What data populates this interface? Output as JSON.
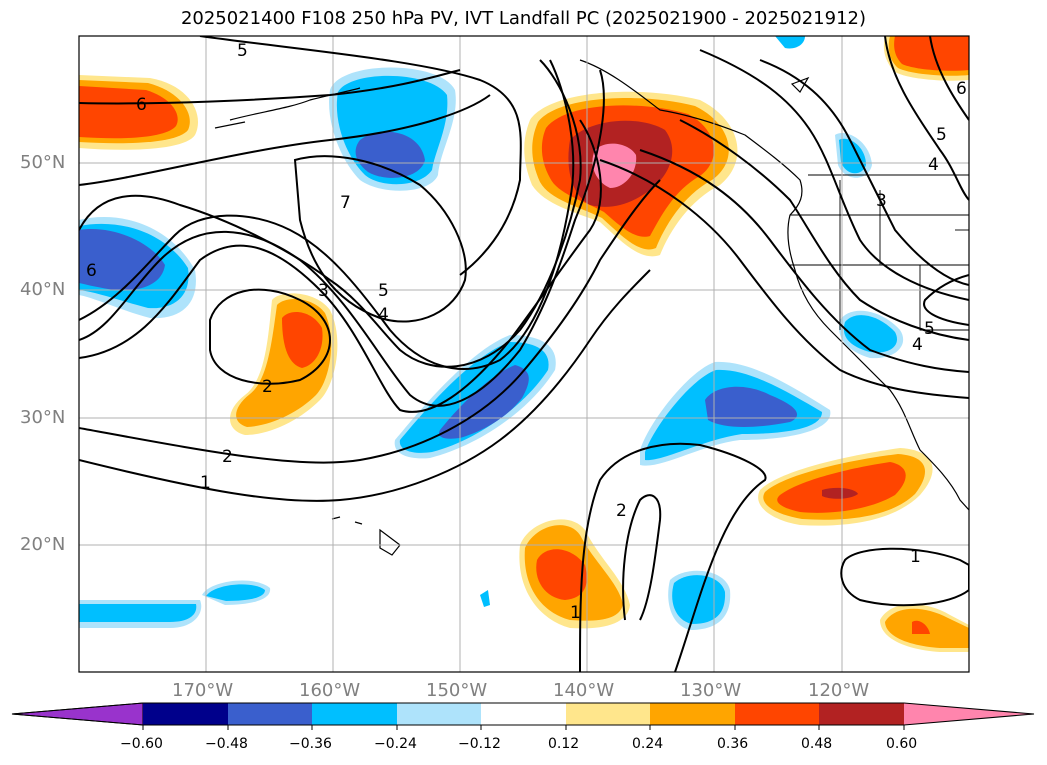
{
  "title": "2025021400 F108 250 hPa PV, IVT Landfall PC (2025021900 - 2025021912)",
  "lat_labels": [
    "50°N",
    "40°N",
    "30°N",
    "20°N"
  ],
  "lon_labels": [
    "170°W",
    "160°W",
    "150°W",
    "140°W",
    "130°W",
    "120°W"
  ],
  "colorbar": {
    "ticks": [
      "−0.60",
      "−0.48",
      "−0.36",
      "−0.24",
      "−0.12",
      "0.12",
      "0.24",
      "0.36",
      "0.48",
      "0.60"
    ],
    "colors": [
      "#9933cc",
      "#00008b",
      "#3a5fcd",
      "#00bfff",
      "#aee3fb",
      "#ffffff",
      "#ffe68c",
      "#ffa500",
      "#ff4500",
      "#b22222",
      "#ff85ad"
    ]
  },
  "contour_labels": [
    "5",
    "6",
    "7",
    "3",
    "5",
    "4",
    "6",
    "2",
    "2",
    "1",
    "2",
    "1",
    "1",
    "4",
    "3",
    "5",
    "4",
    "5",
    "6"
  ],
  "colors": {
    "grid": "#b0b0b0",
    "contour": "#000000",
    "axis_text": "#808080"
  }
}
